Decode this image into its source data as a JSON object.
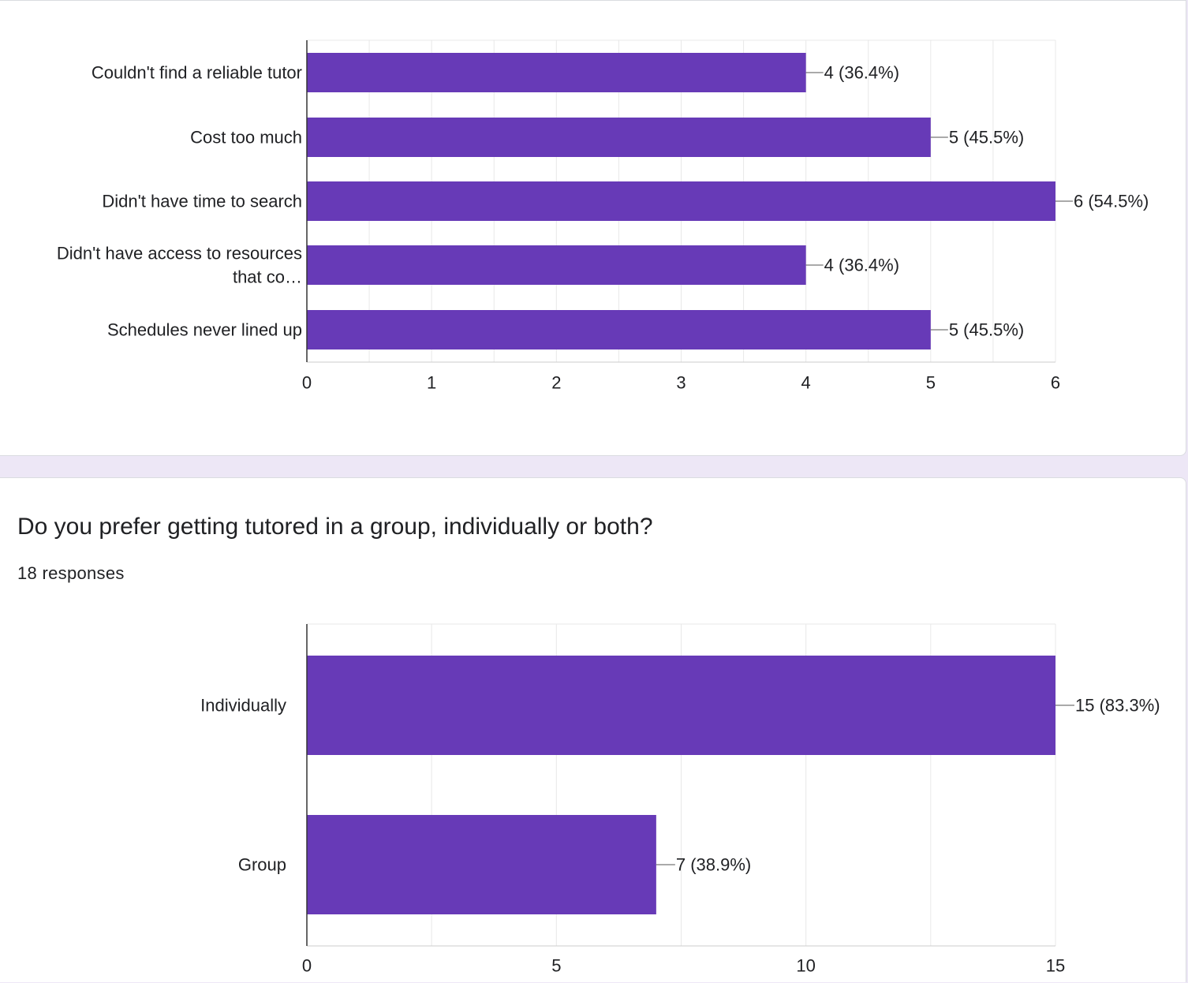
{
  "colors": {
    "bar": "#673ab7",
    "grid": "#e8e8e8",
    "axis": "#333333",
    "text": "#202124",
    "background": "#ede7f6"
  },
  "questions": [
    {
      "title": "",
      "responses": ""
    },
    {
      "title": "Do you prefer getting tutored in a group, individually or both?",
      "responses": "18 responses"
    }
  ],
  "chart_data": [
    {
      "type": "bar",
      "orientation": "horizontal",
      "categories": [
        [
          "Couldn't find a reliable tutor"
        ],
        [
          "Cost too much"
        ],
        [
          "Didn't have time to search"
        ],
        [
          "Didn't have access to resources",
          "that co…"
        ],
        [
          "Schedules never lined up"
        ]
      ],
      "values": [
        4,
        5,
        6,
        4,
        5
      ],
      "data_labels": [
        "4 (36.4%)",
        "5 (45.5%)",
        "6 (54.5%)",
        "4 (36.4%)",
        "5 (45.5%)"
      ],
      "xlim": [
        0,
        6
      ],
      "xticks": [
        0,
        1,
        2,
        3,
        4,
        5,
        6
      ],
      "grid": true
    },
    {
      "type": "bar",
      "orientation": "horizontal",
      "categories": [
        [
          "Individually"
        ],
        [
          "Group"
        ]
      ],
      "values": [
        15,
        7
      ],
      "data_labels": [
        "15 (83.3%)",
        "7 (38.9%)"
      ],
      "xlim": [
        0,
        15
      ],
      "xticks": [
        0,
        5,
        10,
        15
      ],
      "grid": true
    }
  ]
}
